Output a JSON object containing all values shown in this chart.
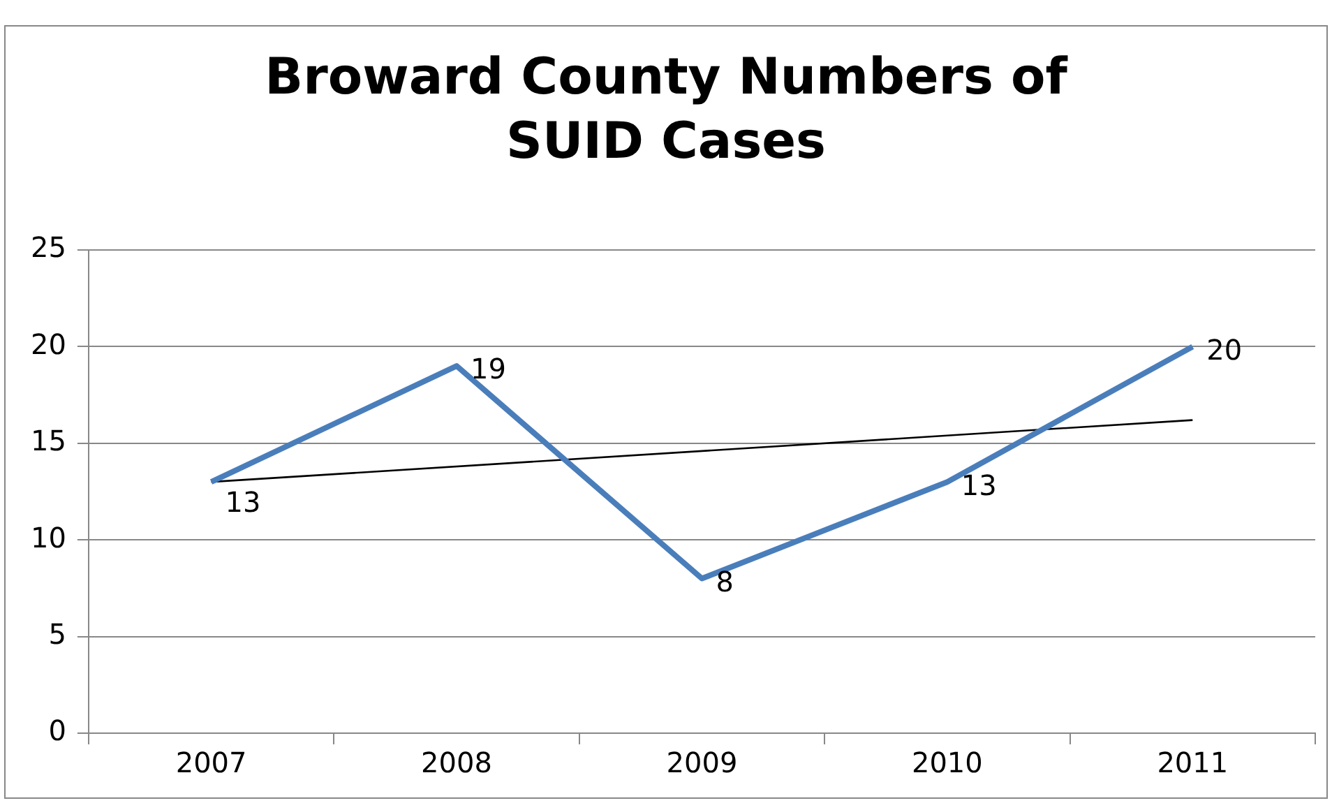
{
  "chart_data": {
    "type": "line",
    "title": "Broward County Numbers of SUID Cases",
    "categories": [
      "2007",
      "2008",
      "2009",
      "2010",
      "2011"
    ],
    "series": [
      {
        "color": "#4a7ebb",
        "values": [
          13,
          19,
          8,
          13,
          20
        ],
        "value_labels": [
          "13",
          "19",
          "8",
          "13",
          "20"
        ]
      },
      {
        "type": "line",
        "color": "#000000",
        "values": [
          13,
          null,
          null,
          null,
          16.2
        ]
      }
    ],
    "ylim": [
      0,
      25
    ],
    "yticks": [
      0,
      5,
      10,
      15,
      20,
      25
    ],
    "grid": "y",
    "legend": false,
    "marker": "none"
  }
}
